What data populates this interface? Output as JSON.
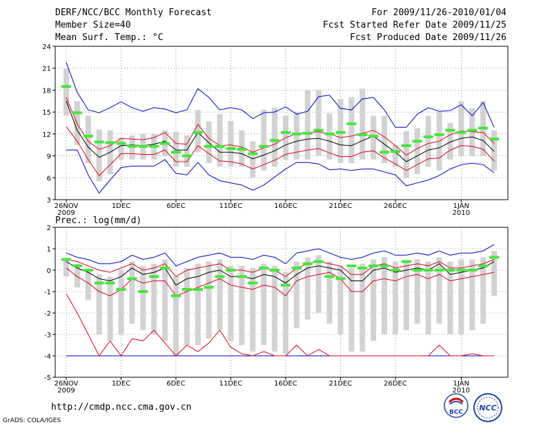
{
  "header": {
    "title": "DERF/NCC/BCC Monthly Forecast",
    "member_size": "Member Size=40",
    "variable_top": "Mean Surf. Temp.: °C",
    "for_period": "For 2009/11/26-2010/01/04",
    "fcst_started": "Fcst Started Refer Date 2009/11/25",
    "fcst_produced": "Fcst Produced Date 2009/11/26"
  },
  "footer": {
    "url": "http://cmdp.ncc.cma.gov.cn",
    "credit": "GrADS: COLA/IGES",
    "logo_bcc": "BCC",
    "logo_ncc": "NCC"
  },
  "colors": {
    "box": "#d2d2d2",
    "median": "#000000",
    "quartile": "#e0001a",
    "extreme": "#0000cc",
    "observed": "#44e63c",
    "grid": "#444444"
  },
  "chart_data": [
    {
      "type": "box",
      "title": "Mean Surf. Temp.: °C",
      "ylim": [
        3,
        24
      ],
      "yticks": [
        "3",
        "6",
        "9",
        "12",
        "15",
        "18",
        "21",
        "24"
      ],
      "xtick_labels": [
        {
          "day": 0,
          "label": "26NOV",
          "sub": "2009"
        },
        {
          "day": 5,
          "label": "1DEC",
          "sub": ""
        },
        {
          "day": 10,
          "label": "6DEC",
          "sub": ""
        },
        {
          "day": 15,
          "label": "11DEC",
          "sub": ""
        },
        {
          "day": 20,
          "label": "16DEC",
          "sub": ""
        },
        {
          "day": 25,
          "label": "21DEC",
          "sub": ""
        },
        {
          "day": 30,
          "label": "26DEC",
          "sub": ""
        },
        {
          "day": 36,
          "label": "1JAN",
          "sub": "2010"
        }
      ],
      "days": 40,
      "median": [
        16.5,
        12.5,
        10.2,
        8.8,
        9.5,
        10.4,
        10.5,
        10.4,
        10.6,
        11.0,
        9.8,
        9.8,
        12.2,
        10.8,
        9.5,
        9.5,
        9.3,
        8.6,
        9.1,
        9.7,
        10.5,
        11.0,
        11.3,
        11.4,
        11.0,
        10.5,
        10.4,
        11.1,
        11.7,
        10.6,
        9.5,
        8.2,
        9.0,
        9.8,
        10.1,
        10.9,
        11.4,
        11.6,
        11.1,
        9.6
      ],
      "q_upper": [
        17.0,
        13.4,
        11.0,
        9.9,
        10.4,
        11.4,
        11.3,
        11.2,
        11.5,
        12.2,
        10.7,
        10.6,
        13.3,
        11.4,
        10.4,
        10.5,
        10.2,
        9.5,
        10.1,
        10.6,
        11.5,
        12.0,
        12.2,
        12.3,
        12.0,
        11.5,
        11.7,
        12.1,
        12.5,
        11.6,
        10.4,
        9.1,
        10.0,
        10.7,
        11.0,
        11.9,
        12.4,
        12.3,
        12.2,
        10.7
      ],
      "q_lower": [
        13.0,
        11.0,
        8.5,
        6.3,
        7.8,
        9.3,
        9.3,
        9.2,
        9.2,
        9.8,
        8.2,
        8.2,
        10.4,
        9.3,
        8.3,
        8.2,
        7.9,
        7.2,
        7.8,
        8.4,
        9.2,
        9.5,
        9.8,
        10.0,
        9.4,
        8.9,
        8.9,
        9.5,
        9.7,
        8.7,
        7.9,
        7.0,
        7.8,
        8.6,
        8.7,
        9.8,
        10.4,
        10.3,
        9.9,
        8.3
      ],
      "max": [
        21.8,
        17.7,
        15.3,
        14.9,
        15.6,
        16.4,
        15.6,
        15.1,
        15.6,
        15.4,
        14.9,
        15.3,
        18.2,
        17.0,
        15.3,
        15.6,
        15.3,
        14.1,
        14.9,
        15.0,
        15.7,
        14.7,
        15.1,
        17.1,
        17.3,
        15.5,
        15.3,
        16.8,
        17.0,
        15.3,
        12.9,
        12.9,
        14.7,
        15.6,
        15.1,
        15.2,
        16.0,
        14.5,
        16.3,
        12.9
      ],
      "min": [
        9.8,
        9.8,
        6.4,
        3.9,
        5.7,
        7.4,
        7.6,
        7.6,
        7.6,
        8.5,
        6.6,
        6.4,
        8.1,
        6.4,
        5.6,
        5.3,
        5.0,
        4.3,
        5.0,
        6.1,
        7.2,
        8.1,
        8.1,
        7.9,
        7.1,
        7.2,
        7.0,
        7.2,
        7.2,
        6.8,
        6.4,
        4.9,
        5.3,
        5.7,
        6.3,
        7.2,
        7.8,
        8.0,
        7.8,
        6.7
      ],
      "box_top": [
        21.0,
        16.5,
        14.5,
        12.6,
        12.5,
        11.5,
        11.8,
        12.0,
        12.0,
        12.5,
        12.3,
        11.8,
        15.3,
        13.7,
        14.7,
        13.8,
        12.5,
        11.0,
        15.3,
        15.6,
        14.5,
        15.0,
        18.0,
        18.0,
        14.8,
        16.8,
        17.0,
        18.2,
        14.5,
        14.5,
        10.5,
        12.4,
        12.8,
        14.5,
        15.0,
        13.5,
        16.5,
        15.5,
        16.5,
        12.5
      ],
      "box_bottom": [
        14.5,
        10.5,
        8.0,
        5.5,
        6.5,
        8.5,
        8.5,
        8.5,
        8.5,
        9.0,
        7.5,
        7.5,
        9.5,
        8.0,
        7.5,
        7.5,
        7.5,
        6.0,
        7.0,
        7.5,
        8.5,
        8.5,
        8.5,
        9.0,
        8.5,
        8.0,
        8.0,
        8.5,
        8.5,
        8.0,
        7.5,
        6.0,
        6.5,
        7.5,
        7.0,
        8.5,
        9.0,
        9.0,
        9.0,
        7.0
      ],
      "observed": [
        18.5,
        14.9,
        11.7,
        10.9,
        10.8,
        10.7,
        10.3,
        10.3,
        10.3,
        10.7,
        9.5,
        9.0,
        12.2,
        10.3,
        10.3,
        10.0,
        9.9,
        9.3,
        10.3,
        11.1,
        12.2,
        12.0,
        12.1,
        12.5,
        12.0,
        12.2,
        13.4,
        11.9,
        11.7,
        9.5,
        9.6,
        10.4,
        11.0,
        11.6,
        11.9,
        12.5,
        12.2,
        12.5,
        12.8,
        11.3
      ]
    },
    {
      "type": "box",
      "title": "Prec.: log(mm/d)",
      "ylim": [
        -5,
        2
      ],
      "yticks": [
        "-5",
        "-4",
        "-3",
        "-2",
        "-1",
        "0",
        "1",
        "2"
      ],
      "xtick_labels": [
        {
          "day": 0,
          "label": "26NOV",
          "sub": "2009"
        },
        {
          "day": 5,
          "label": "1DEC",
          "sub": ""
        },
        {
          "day": 10,
          "label": "6DEC",
          "sub": ""
        },
        {
          "day": 15,
          "label": "11DEC",
          "sub": ""
        },
        {
          "day": 20,
          "label": "16DEC",
          "sub": ""
        },
        {
          "day": 25,
          "label": "21DEC",
          "sub": ""
        },
        {
          "day": 30,
          "label": "26DEC",
          "sub": ""
        },
        {
          "day": 36,
          "label": "1JAN",
          "sub": "2010"
        }
      ],
      "days": 40,
      "median": [
        0.4,
        0.1,
        -0.1,
        -0.4,
        -0.5,
        -0.3,
        0.1,
        -0.2,
        -0.1,
        0.1,
        -0.7,
        -0.4,
        -0.3,
        -0.1,
        0.0,
        -0.3,
        -0.3,
        -0.4,
        -0.2,
        -0.3,
        -0.6,
        -0.2,
        0.1,
        0.2,
        0.1,
        0.0,
        -0.5,
        -0.5,
        0.0,
        0.1,
        -0.1,
        0.0,
        0.1,
        0.0,
        0.3,
        -0.2,
        -0.1,
        0.0,
        0.1,
        0.4
      ],
      "q_upper": [
        0.5,
        0.4,
        0.2,
        0.0,
        -0.1,
        0.1,
        0.3,
        0.0,
        0.1,
        0.3,
        -0.3,
        0.0,
        0.1,
        0.2,
        0.3,
        0.0,
        0.0,
        -0.1,
        0.1,
        0.0,
        -0.3,
        0.1,
        0.3,
        0.4,
        0.3,
        0.2,
        -0.2,
        -0.2,
        0.2,
        0.3,
        0.1,
        0.2,
        0.3,
        0.2,
        0.4,
        0.1,
        0.1,
        0.2,
        0.3,
        0.5
      ],
      "q_lower": [
        0.1,
        -0.3,
        -0.6,
        -1.0,
        -1.2,
        -0.9,
        -0.4,
        -0.6,
        -0.5,
        -0.5,
        -1.2,
        -1.0,
        -0.8,
        -0.6,
        -0.4,
        -0.7,
        -0.8,
        -0.9,
        -0.7,
        -0.8,
        -1.2,
        -0.5,
        -0.3,
        -0.2,
        -0.1,
        -0.4,
        -1.0,
        -1.0,
        -0.5,
        -0.4,
        -0.5,
        -0.3,
        -0.2,
        -0.4,
        -0.2,
        -0.5,
        -0.4,
        -0.3,
        -0.2,
        -0.1
      ],
      "q_lower_min": [
        -1.1,
        -2.0,
        -3.0,
        -4.0,
        -3.3,
        -4.0,
        -3.2,
        -3.3,
        -2.8,
        -3.4,
        -4.0,
        -3.5,
        -3.8,
        -3.4,
        -2.8,
        -3.6,
        -3.9,
        -4.0,
        -3.8,
        -4.0,
        -4.0,
        -3.5,
        -4.0,
        -3.7,
        -4.0,
        -4.0,
        -4.0,
        -4.0,
        -4.0,
        -4.0,
        -4.0,
        -4.0,
        -4.0,
        -4.0,
        -3.5,
        -4.0,
        -4.0,
        -3.9,
        -4.0,
        -4.0
      ],
      "max": [
        0.8,
        0.6,
        0.5,
        0.3,
        0.3,
        0.4,
        0.7,
        0.5,
        0.6,
        0.8,
        0.2,
        0.4,
        0.6,
        0.7,
        0.8,
        0.6,
        0.6,
        0.5,
        0.7,
        0.6,
        0.3,
        0.8,
        0.9,
        1.0,
        0.8,
        0.6,
        0.5,
        0.6,
        0.8,
        0.9,
        0.7,
        0.7,
        0.8,
        0.7,
        0.9,
        0.7,
        0.8,
        0.8,
        0.9,
        1.2
      ],
      "min": [
        -4.0,
        -4.0,
        -4.0,
        -4.0,
        -4.0,
        -4.0,
        -4.0,
        -4.0,
        -4.0,
        -4.0,
        -4.0,
        -4.0,
        -4.0,
        -4.0,
        -4.0,
        -4.0,
        -4.0,
        -4.0,
        -4.0,
        -4.0,
        -4.0,
        -4.0,
        -4.0,
        -4.0,
        -4.0,
        -4.0,
        -4.0,
        -4.0,
        -4.0,
        -4.0,
        -4.0,
        -4.0,
        -4.0,
        -4.0,
        -4.0,
        -4.0,
        -4.0,
        -4.0,
        -4.0,
        -4.0
      ],
      "box_top": [
        0.5,
        0.3,
        0.0,
        -0.2,
        -0.3,
        0.0,
        0.4,
        0.2,
        0.3,
        0.5,
        -0.3,
        0.1,
        0.3,
        0.4,
        0.5,
        0.2,
        0.2,
        0.1,
        0.3,
        0.2,
        -0.1,
        0.4,
        0.6,
        0.7,
        0.4,
        0.2,
        0.1,
        0.3,
        0.5,
        0.6,
        0.4,
        0.4,
        0.5,
        0.4,
        0.6,
        0.4,
        0.5,
        0.5,
        0.6,
        0.9
      ],
      "box_bottom": [
        -0.3,
        -0.8,
        -1.4,
        -3.0,
        -3.3,
        -3.0,
        -2.5,
        -2.8,
        -3.0,
        -3.3,
        -4.0,
        -3.5,
        -3.5,
        -3.2,
        -2.8,
        -3.3,
        -3.5,
        -3.8,
        -3.5,
        -3.8,
        -3.9,
        -2.7,
        -2.3,
        -2.0,
        -2.5,
        -3.0,
        -3.8,
        -3.8,
        -3.3,
        -3.0,
        -3.0,
        -2.8,
        -2.5,
        -3.0,
        -2.5,
        -3.0,
        -3.0,
        -2.8,
        -2.5,
        -1.2
      ],
      "observed": [
        0.5,
        0.2,
        0.0,
        -0.6,
        -0.6,
        -0.9,
        -0.4,
        -1.0,
        -0.3,
        0.1,
        -1.2,
        -0.9,
        -0.9,
        -0.8,
        -0.3,
        0.0,
        -0.3,
        -0.6,
        0.1,
        0.0,
        -0.7,
        0.1,
        0.3,
        0.4,
        -0.3,
        -0.4,
        0.2,
        0.1,
        0.2,
        0.2,
        0.0,
        0.4,
        0.0,
        0.0,
        0.0,
        0.0,
        0.0,
        0.0,
        0.2,
        0.6
      ]
    }
  ]
}
